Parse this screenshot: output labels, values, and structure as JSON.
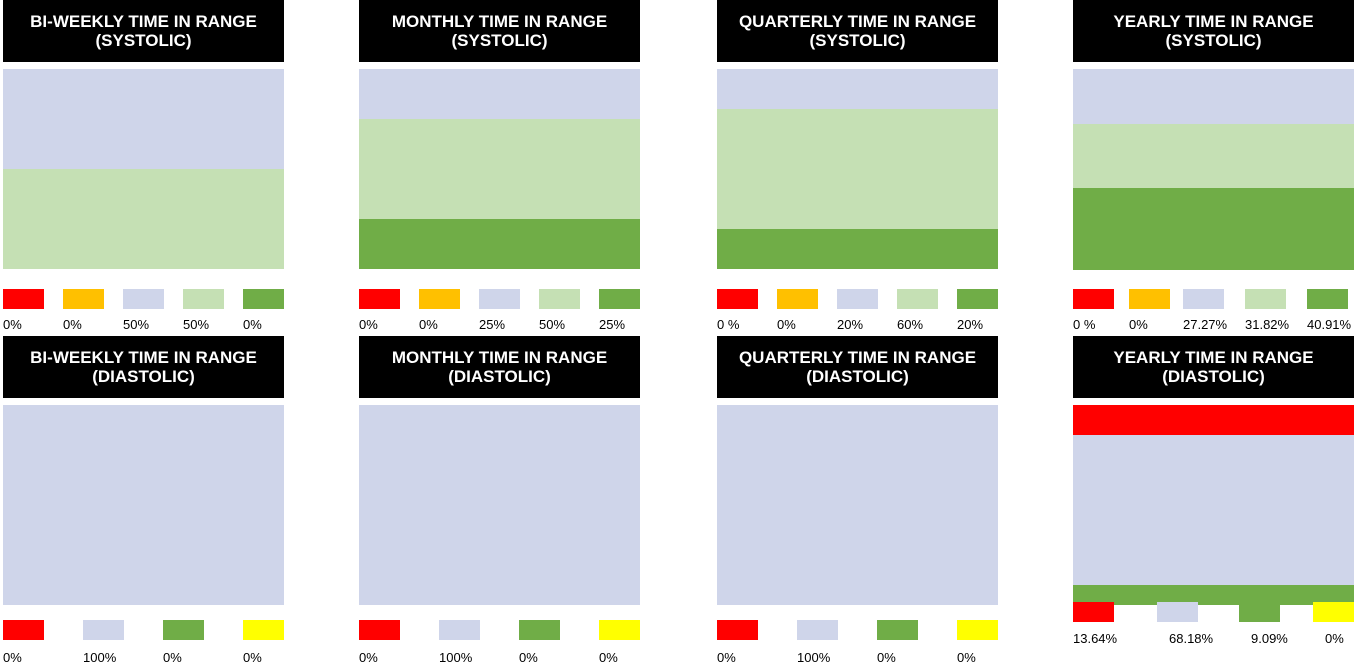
{
  "colors": {
    "red": "#ff0000",
    "orange": "#ffc000",
    "lavender": "#cfd5ea",
    "light_green": "#c5e0b4",
    "green": "#70ad47",
    "yellow": "#ffff00"
  },
  "chart_data": [
    {
      "type": "bar",
      "title": "BI-WEEKLY TIME IN RANGE (SYSTOLIC)",
      "stacked": true,
      "series": [
        {
          "color": "#ff0000",
          "value": 0,
          "label": "0%"
        },
        {
          "color": "#ffc000",
          "value": 0,
          "label": "0%"
        },
        {
          "color": "#cfd5ea",
          "value": 50,
          "label": "50%"
        },
        {
          "color": "#c5e0b4",
          "value": 50,
          "label": "50%"
        },
        {
          "color": "#70ad47",
          "value": 0,
          "label": "0%"
        }
      ]
    },
    {
      "type": "bar",
      "title": "MONTHLY TIME IN RANGE (SYSTOLIC)",
      "stacked": true,
      "series": [
        {
          "color": "#ff0000",
          "value": 0,
          "label": "0%"
        },
        {
          "color": "#ffc000",
          "value": 0,
          "label": "0%"
        },
        {
          "color": "#cfd5ea",
          "value": 25,
          "label": "25%"
        },
        {
          "color": "#c5e0b4",
          "value": 50,
          "label": "50%"
        },
        {
          "color": "#70ad47",
          "value": 25,
          "label": "25%"
        }
      ]
    },
    {
      "type": "bar",
      "title": "QUARTERLY TIME IN RANGE (SYSTOLIC)",
      "stacked": true,
      "series": [
        {
          "color": "#ff0000",
          "value": 0,
          "label": "0 %"
        },
        {
          "color": "#ffc000",
          "value": 0,
          "label": "0%"
        },
        {
          "color": "#cfd5ea",
          "value": 20,
          "label": "20%"
        },
        {
          "color": "#c5e0b4",
          "value": 60,
          "label": "60%"
        },
        {
          "color": "#70ad47",
          "value": 20,
          "label": "20%"
        }
      ]
    },
    {
      "type": "bar",
      "title": "YEARLY TIME IN RANGE (SYSTOLIC)",
      "stacked": true,
      "series": [
        {
          "color": "#ff0000",
          "value": 0,
          "label": "0 %"
        },
        {
          "color": "#ffc000",
          "value": 0,
          "label": "0%"
        },
        {
          "color": "#cfd5ea",
          "value": 27.27,
          "label": "27.27%"
        },
        {
          "color": "#c5e0b4",
          "value": 31.82,
          "label": "31.82%"
        },
        {
          "color": "#70ad47",
          "value": 40.91,
          "label": "40.91%"
        }
      ]
    },
    {
      "type": "bar",
      "title": "BI-WEEKLY TIME IN RANGE (DIASTOLIC)",
      "stacked": true,
      "series": [
        {
          "color": "#ff0000",
          "value": 0,
          "label": "0%"
        },
        {
          "color": "#cfd5ea",
          "value": 100,
          "label": "100%"
        },
        {
          "color": "#70ad47",
          "value": 0,
          "label": "0%"
        },
        {
          "color": "#ffff00",
          "value": 0,
          "label": "0%"
        }
      ]
    },
    {
      "type": "bar",
      "title": "MONTHLY TIME IN RANGE (DIASTOLIC)",
      "stacked": true,
      "series": [
        {
          "color": "#ff0000",
          "value": 0,
          "label": "0%"
        },
        {
          "color": "#cfd5ea",
          "value": 100,
          "label": "100%"
        },
        {
          "color": "#70ad47",
          "value": 0,
          "label": "0%"
        },
        {
          "color": "#ffff00",
          "value": 0,
          "label": "0%"
        }
      ]
    },
    {
      "type": "bar",
      "title": "QUARTERLY TIME IN RANGE (DIASTOLIC)",
      "stacked": true,
      "series": [
        {
          "color": "#ff0000",
          "value": 0,
          "label": "0%"
        },
        {
          "color": "#cfd5ea",
          "value": 100,
          "label": "100%"
        },
        {
          "color": "#70ad47",
          "value": 0,
          "label": "0%"
        },
        {
          "color": "#ffff00",
          "value": 0,
          "label": "0%"
        }
      ]
    },
    {
      "type": "bar",
      "title": "YEARLY TIME IN RANGE (DIASTOLIC)",
      "stacked": true,
      "series": [
        {
          "color": "#ff0000",
          "value": 13.64,
          "label": "13.64%"
        },
        {
          "color": "#cfd5ea",
          "value": 68.18,
          "label": "68.18%"
        },
        {
          "color": "#70ad47",
          "value": 9.09,
          "label": "9.09%"
        },
        {
          "color": "#ffff00",
          "value": 0,
          "label": "0%"
        }
      ]
    }
  ]
}
